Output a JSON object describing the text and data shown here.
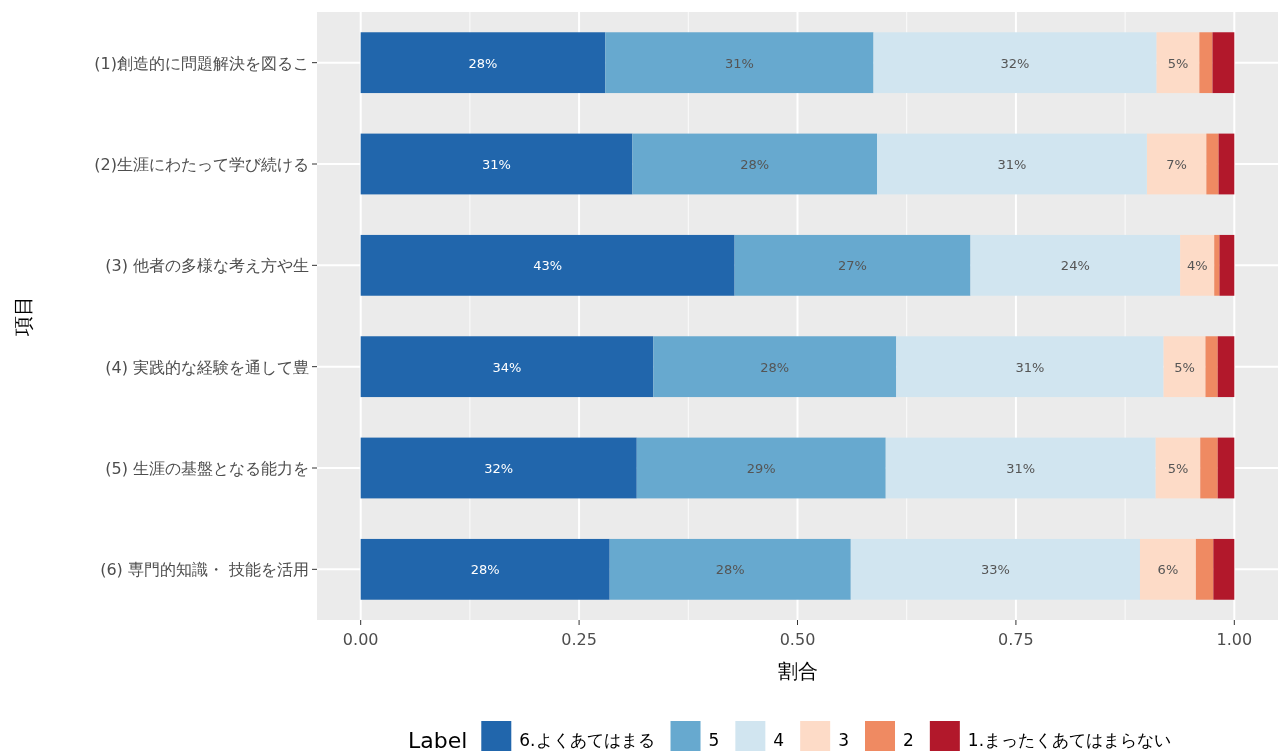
{
  "chart_data": {
    "type": "bar",
    "orientation": "horizontal",
    "stacked": true,
    "xlabel": "割合",
    "ylabel": "項目",
    "legend_title": "Label",
    "legend": "bottom",
    "grid": true,
    "categories": [
      "(1)創造的に問題解決を図るこ",
      "(2)生涯にわたって学び続ける",
      "(3) 他者の多様な考え方や生",
      "(4) 実践的な経験を通して豊",
      "(5) 生涯の基盤となる能力を",
      "(6) 専門的知識・ 技能を活用"
    ],
    "xlim": [
      -0.05,
      1.05
    ],
    "xticks": [
      {
        "value": 0,
        "label": "0.00"
      },
      {
        "value": 0.25,
        "label": "0.25"
      },
      {
        "value": 0.5,
        "label": "0.50"
      },
      {
        "value": 0.75,
        "label": "0.75"
      },
      {
        "value": 1,
        "label": "1.00"
      }
    ],
    "series": [
      {
        "name": "6.よくあてはまる",
        "color": "#2166ac",
        "values": [
          0.28,
          0.311,
          0.428,
          0.335,
          0.316,
          0.285
        ],
        "value_labels": [
          "28%",
          "31%",
          "43%",
          "34%",
          "32%",
          "28%"
        ]
      },
      {
        "name": "5",
        "color": "#67a9cf",
        "values": [
          0.307,
          0.28,
          0.27,
          0.278,
          0.285,
          0.276
        ],
        "value_labels": [
          "31%",
          "28%",
          "27%",
          "28%",
          "29%",
          "28%"
        ]
      },
      {
        "name": "4",
        "color": "#d1e5f0",
        "values": [
          0.324,
          0.309,
          0.24,
          0.306,
          0.309,
          0.331
        ],
        "value_labels": [
          "32%",
          "31%",
          "24%",
          "31%",
          "31%",
          "33%"
        ]
      },
      {
        "name": "3",
        "color": "#fddbc7",
        "values": [
          0.049,
          0.068,
          0.039,
          0.048,
          0.051,
          0.064
        ],
        "value_labels": [
          "5%",
          "7%",
          "4%",
          "5%",
          "5%",
          "6%"
        ]
      },
      {
        "name": "2",
        "color": "#ef8a62",
        "values": [
          0.015,
          0.014,
          0.006,
          0.014,
          0.02,
          0.02
        ]
      },
      {
        "name": "1.まったくあてはまらない",
        "color": "#b2182b",
        "values": [
          0.025,
          0.018,
          0.017,
          0.019,
          0.019,
          0.024
        ]
      }
    ]
  }
}
